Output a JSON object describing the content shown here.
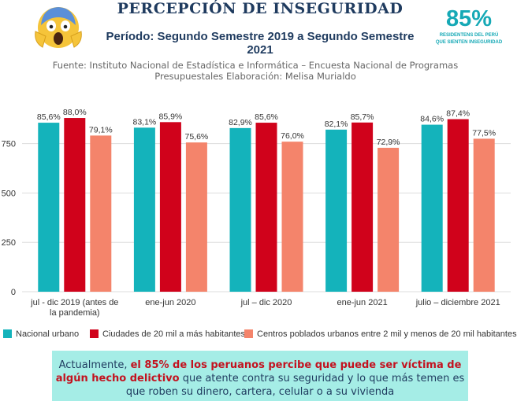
{
  "header": {
    "title": "PERCEPCIÓN DE INSEGURIDAD",
    "period": "Período: Segundo Semestre 2019 a Segundo Semestre 2021",
    "stat_value": "85%",
    "stat_caption": "RESIDENTENS DEL PERÚ QUE SIENTEN INSEGURIDAD",
    "source_line1": "Fuente: Instituto Nacional de Estadística e Informática – Encuesta Nacional de Programas",
    "source_line2": "Presupuestales Elaboración: Melisa Murialdo",
    "emoji_icon": "screaming-face-icon"
  },
  "chart_data": {
    "type": "bar",
    "categories": [
      [
        "jul - dic 2019 (antes de",
        "la pandemia)"
      ],
      [
        "ene-jun 2020"
      ],
      [
        "jul – dic 2020"
      ],
      [
        "ene-jun 2021"
      ],
      [
        "julio – diciembre 2021"
      ]
    ],
    "series": [
      {
        "name": "Nacional urbano",
        "color": "#14b3bb",
        "values": [
          856,
          831,
          829,
          821,
          846
        ],
        "labels": [
          "85,6%",
          "83,1%",
          "82,9%",
          "82,1%",
          "84,6%"
        ]
      },
      {
        "name": "Ciudades de 20 mil a más habitantes",
        "color": "#d0021b",
        "values": [
          880,
          859,
          856,
          857,
          874
        ],
        "labels": [
          "88,0%",
          "85,9%",
          "85,6%",
          "85,7%",
          "87,4%"
        ]
      },
      {
        "name": "Centros poblados urbanos entre 2 mil y menos de 20 mil habitantes",
        "color": "#f4846b",
        "values": [
          791,
          756,
          760,
          729,
          775
        ],
        "labels": [
          "79,1%",
          "75,6%",
          "76,0%",
          "72,9%",
          "77,5%"
        ]
      }
    ],
    "yticks": [
      "0",
      "250",
      "500",
      "750"
    ],
    "ytick_values": [
      0,
      250,
      500,
      750
    ],
    "ylim": [
      0,
      920
    ],
    "grid": true,
    "legend_position": "bottom"
  },
  "footer": {
    "prefix": "Actualmente, ",
    "highlight": "el 85% de los peruanos percibe que puede ser víctima de algún hecho delictivo",
    "suffix": " que atente contra su seguridad y lo que más temen es que roben su dinero, cartera, celular o a su vivienda",
    "background": "#a5ede6"
  }
}
